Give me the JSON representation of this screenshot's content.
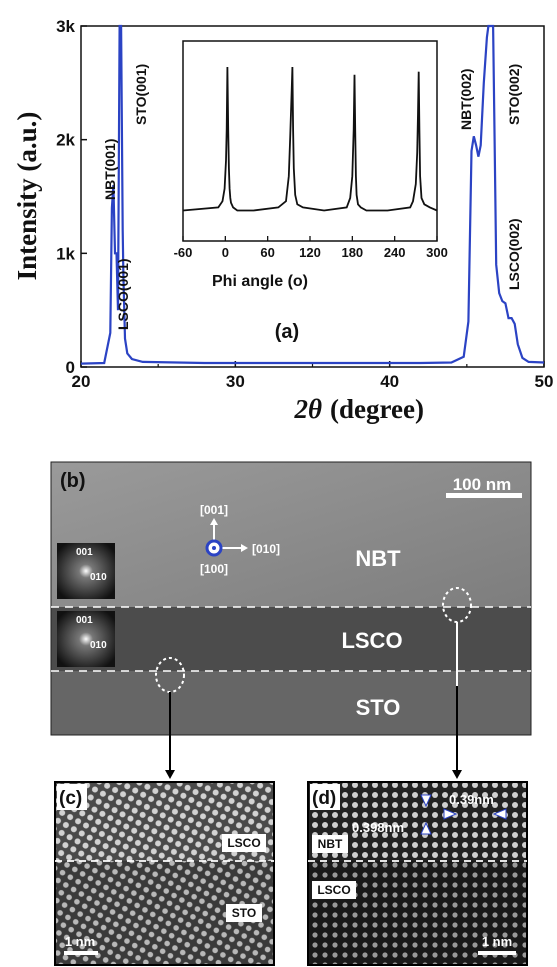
{
  "xrd": {
    "panel_label": "(a)",
    "ylabel": "Intensity (a.u.)",
    "xlabel_symbol": "2θ",
    "xlabel_unit": "(degree)"
  },
  "chart_data": [
    {
      "type": "line",
      "xlabel": "2θ (degree)",
      "ylabel": "Intensity (a.u.)",
      "xlim": [
        20,
        50
      ],
      "ylim": [
        0,
        3000
      ],
      "x_ticks": [
        "20",
        "30",
        "40",
        "50"
      ],
      "y_ticks": [
        "0",
        "1k",
        "2k",
        "3k"
      ],
      "color": "#2b43c4",
      "series": [
        {
          "x": [
            20.0,
            21.5,
            21.9,
            22.0,
            22.1,
            22.2,
            22.3,
            22.4,
            22.5,
            22.6,
            22.7,
            22.75,
            22.85,
            23.0,
            23.3,
            24.0,
            28.0,
            35.0,
            42.0,
            44.0,
            44.8,
            45.1,
            45.3,
            45.45,
            45.6,
            45.75,
            45.9,
            46.1,
            46.3,
            46.4,
            46.5,
            46.6,
            46.7,
            46.8,
            46.9,
            47.1,
            47.3,
            47.5,
            47.7,
            47.9,
            48.1,
            48.3,
            48.6,
            49.0,
            50.0
          ],
          "y": [
            30,
            35,
            300,
            1400,
            1600,
            1000,
            1000,
            500,
            3000,
            3000,
            1200,
            800,
            250,
            120,
            70,
            45,
            35,
            35,
            35,
            40,
            90,
            400,
            1900,
            2030,
            1950,
            1850,
            1950,
            2500,
            2900,
            3000,
            3000,
            3000,
            3000,
            2000,
            900,
            650,
            580,
            560,
            430,
            430,
            380,
            200,
            80,
            45,
            40
          ]
        }
      ],
      "annotations": [
        "NBT(001)",
        "STO(001)",
        "LSCO(001)",
        "NBT(002)",
        "STO(002)",
        "LSCO(002)"
      ]
    },
    {
      "type": "line",
      "xlabel": "Phi angle (o)",
      "xlim": [
        -60,
        300
      ],
      "x_ticks": [
        "-60",
        "0",
        "60",
        "120",
        "180",
        "240",
        "300"
      ],
      "series": [
        {
          "x": [
            -60,
            -10,
            -4,
            -1,
            1,
            2,
            3,
            4,
            5,
            6,
            7,
            8,
            11,
            17,
            40,
            75,
            86,
            90,
            92,
            94,
            95,
            96,
            97,
            99,
            102,
            110,
            140,
            172,
            177,
            180,
            182,
            183,
            184,
            185,
            186,
            188,
            192,
            200,
            230,
            262,
            266,
            270,
            272,
            273,
            274,
            275,
            276,
            278,
            282,
            290,
            300
          ],
          "y": [
            0.08,
            0.1,
            0.14,
            0.22,
            0.4,
            0.6,
            1.0,
            0.6,
            0.35,
            0.22,
            0.16,
            0.13,
            0.1,
            0.08,
            0.08,
            0.1,
            0.14,
            0.3,
            0.55,
            0.85,
            1.0,
            0.6,
            0.35,
            0.18,
            0.12,
            0.1,
            0.08,
            0.1,
            0.16,
            0.3,
            0.6,
            0.95,
            0.6,
            0.3,
            0.18,
            0.12,
            0.1,
            0.08,
            0.08,
            0.1,
            0.14,
            0.25,
            0.45,
            0.7,
            0.97,
            0.6,
            0.3,
            0.16,
            0.12,
            0.1,
            0.08
          ]
        }
      ]
    }
  ],
  "tem": {
    "panel_b": "(b)",
    "scale_b": "100 nm",
    "dir_001": "[001]",
    "dir_010": "[010]",
    "dir_100": "[100]",
    "layer_nbt": "NBT",
    "layer_lsco": "LSCO",
    "layer_sto": "STO",
    "fft_001": "001",
    "fft_010": "010",
    "panel_c": "(c)",
    "c_lsco": "LSCO",
    "c_sto": "STO",
    "scale_c": "1 nm",
    "panel_d": "(d)",
    "d_spacing_1": "0.398nm",
    "d_spacing_2": "0.39nm",
    "d_nbt": "NBT",
    "d_lsco": "LSCO",
    "scale_d": "1 nm"
  }
}
